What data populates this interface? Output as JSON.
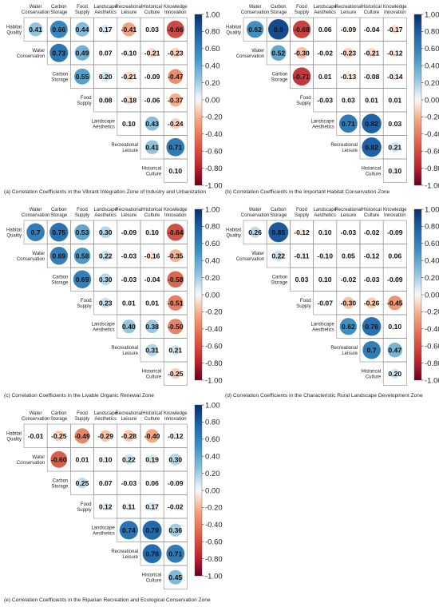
{
  "colors": {
    "positive": "#08306b",
    "negative": "#67001f",
    "neutral": "#f7f7f7",
    "gridline": "#8a8a8a"
  },
  "column_labels": [
    [
      "Water",
      "Conservation"
    ],
    [
      "Carbon",
      "Storage"
    ],
    [
      "Food",
      "Supply"
    ],
    [
      "Landscape",
      "Aesthetics"
    ],
    [
      "Recreational",
      "Leisure"
    ],
    [
      "Historical",
      "Culture"
    ],
    [
      "Knowledge",
      "Innovation"
    ]
  ],
  "row_labels": [
    [
      "Habitat",
      "Quality"
    ],
    [
      "Water",
      "Conservation"
    ],
    [
      "Carbon",
      "Storage"
    ],
    [
      "Food",
      "Supply"
    ],
    [
      "Landscape",
      "Aesthetics"
    ],
    [
      "Recreational",
      "Leisure"
    ],
    [
      "Historical",
      "Culture"
    ]
  ],
  "colorbar_ticks": [
    "1.00",
    "0.80",
    "0.60",
    "0.40",
    "0.20",
    "0.00",
    "-0.20",
    "-0.40",
    "-0.60",
    "-0.80",
    "-1.00"
  ],
  "chart_data": [
    {
      "type": "heatmap",
      "title": "(a) Correlation Coefficients in the Vibrant Integration Zone of Industry and Urbanization",
      "values": [
        [
          "0.41",
          "0.66",
          "0.44",
          "0.17",
          "-0.41",
          "0.03",
          "-0.66"
        ],
        [
          "0.73",
          "0.49",
          "0.07",
          "-0.10",
          "-0.21",
          "-0.23"
        ],
        [
          "0.55",
          "0.20",
          "-0.21",
          "-0.09",
          "-0.47"
        ],
        [
          "0.08",
          "-0.18",
          "-0.06",
          "-0.37"
        ],
        [
          "0.10",
          "0.43",
          "-0.24"
        ],
        [
          "0.41",
          "0.71"
        ],
        [
          "0.10"
        ]
      ]
    },
    {
      "type": "heatmap",
      "title": "(b) Correlation Coefficients in the Important Habitat Conservation Zone",
      "values": [
        [
          "0.62",
          "0.9",
          "-0.68",
          "0.06",
          "-0.09",
          "-0.04",
          "-0.17"
        ],
        [
          "0.52",
          "-0.30",
          "-0.02",
          "-0.23",
          "-0.21",
          "-0.12"
        ],
        [
          "-0.71",
          "0.01",
          "-0.13",
          "-0.08",
          "-0.14"
        ],
        [
          "-0.03",
          "0.03",
          "0.01",
          "0.01"
        ],
        [
          "0.71",
          "0.82",
          "0.03"
        ],
        [
          "0.82",
          "0.21"
        ],
        [
          "0.10"
        ]
      ]
    },
    {
      "type": "heatmap",
      "title": "(c) Correlation Coefficients in the Livable Organic Renewal Zone",
      "values": [
        [
          "0.7",
          "0.75",
          "0.53",
          "0.30",
          "-0.09",
          "0.10",
          "-0.64"
        ],
        [
          "0.69",
          "0.58",
          "0.22",
          "-0.03",
          "-0.16",
          "-0.35"
        ],
        [
          "0.69",
          "0.30",
          "-0.03",
          "-0.04",
          "-0.58"
        ],
        [
          "0.23",
          "0.01",
          "0.01",
          "-0.51"
        ],
        [
          "0.40",
          "0.38",
          "-0.50"
        ],
        [
          "0.31",
          "0.21"
        ],
        [
          "-0.25"
        ]
      ]
    },
    {
      "type": "heatmap",
      "title": "(d) Correlation Coefficients in the Characteristic Rural Landscape Development Zone",
      "values": [
        [
          "0.26",
          "0.85",
          "-0.12",
          "0.10",
          "-0.03",
          "-0.02",
          "-0.09"
        ],
        [
          "0.22",
          "-0.11",
          "-0.10",
          "0.05",
          "-0.12",
          "0.06"
        ],
        [
          "0.03",
          "0.10",
          "-0.02",
          "-0.03",
          "-0.09"
        ],
        [
          "-0.07",
          "-0.30",
          "-0.26",
          "-0.45"
        ],
        [
          "0.62",
          "0.76",
          "0.10"
        ],
        [
          "0.7",
          "0.47"
        ],
        [
          "0.20"
        ]
      ]
    },
    {
      "type": "heatmap",
      "title": "(e) Correlation Coefficients in the Riparian Recreation and Ecological Conservation Zone",
      "values": [
        [
          "-0.01",
          "-0.25",
          "-0.49",
          "-0.29",
          "-0.28",
          "-0.40",
          "-0.12"
        ],
        [
          "-0.60",
          "0.01",
          "0.10",
          "0.22",
          "0.19",
          "0.30"
        ],
        [
          "0.25",
          "0.07",
          "-0.03",
          "0.06",
          "-0.09"
        ],
        [
          "0.12",
          "0.11",
          "0.17",
          "-0.02"
        ],
        [
          "0.74",
          "0.79",
          "0.36"
        ],
        [
          "0.78",
          "0.71"
        ],
        [
          "0.45"
        ]
      ]
    }
  ]
}
